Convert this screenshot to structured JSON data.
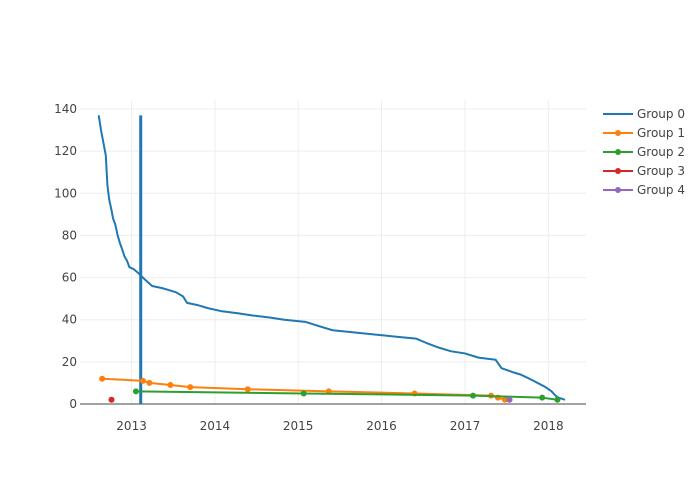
{
  "chart_data": {
    "type": "line",
    "title": "",
    "xlabel": "",
    "ylabel": "",
    "x_ticks": [
      "2013",
      "2014",
      "2015",
      "2016",
      "2017",
      "2018"
    ],
    "y_ticks": [
      "0",
      "20",
      "40",
      "60",
      "80",
      "100",
      "120",
      "140"
    ],
    "xlim": [
      "2012-05-20",
      "2018-06-15"
    ],
    "ylim": [
      0,
      140
    ],
    "grid": true,
    "legend_position": "top-right",
    "series": [
      {
        "name": "Group 0",
        "color": "#1f77b4",
        "mode": "lines",
        "points": [
          [
            "2012-08-10",
            137
          ],
          [
            "2012-08-20",
            130
          ],
          [
            "2012-08-27",
            126
          ],
          [
            "2012-09-03",
            122
          ],
          [
            "2012-09-10",
            118
          ],
          [
            "2012-09-17",
            104
          ],
          [
            "2012-09-25",
            97
          ],
          [
            "2012-10-05",
            92
          ],
          [
            "2012-10-12",
            88
          ],
          [
            "2012-10-22",
            85
          ],
          [
            "2012-11-01",
            80
          ],
          [
            "2012-11-12",
            76
          ],
          [
            "2012-11-22",
            73
          ],
          [
            "2012-12-01",
            70
          ],
          [
            "2012-12-12",
            68
          ],
          [
            "2012-12-22",
            65
          ],
          [
            "2013-01-10",
            64
          ],
          [
            "2013-02-01",
            62
          ],
          [
            "2013-03-01",
            59
          ],
          [
            "2013-04-01",
            56
          ],
          [
            "2013-05-15",
            55
          ],
          [
            "2013-06-15",
            54
          ],
          [
            "2013-07-15",
            53
          ],
          [
            "2013-08-15",
            51
          ],
          [
            "2013-09-01",
            48
          ],
          [
            "2013-10-15",
            47
          ],
          [
            "2013-12-01",
            45.5
          ],
          [
            "2014-02-01",
            44
          ],
          [
            "2014-04-15",
            43
          ],
          [
            "2014-06-15",
            42
          ],
          [
            "2014-09-01",
            41
          ],
          [
            "2014-11-01",
            40
          ],
          [
            "2015-02-01",
            39
          ],
          [
            "2015-04-01",
            37
          ],
          [
            "2015-06-01",
            35
          ],
          [
            "2015-09-01",
            34
          ],
          [
            "2015-12-01",
            33
          ],
          [
            "2016-03-01",
            32
          ],
          [
            "2016-06-01",
            31
          ],
          [
            "2016-07-15",
            29
          ],
          [
            "2016-09-01",
            27
          ],
          [
            "2016-11-01",
            25
          ],
          [
            "2017-01-01",
            24
          ],
          [
            "2017-03-01",
            22
          ],
          [
            "2017-05-15",
            21
          ],
          [
            "2017-06-10",
            17
          ],
          [
            "2017-08-01",
            15
          ],
          [
            "2017-09-01",
            14
          ],
          [
            "2017-10-10",
            12
          ],
          [
            "2017-11-15",
            10
          ],
          [
            "2017-12-20",
            8
          ],
          [
            "2018-01-15",
            6
          ],
          [
            "2018-02-01",
            4
          ],
          [
            "2018-02-15",
            3
          ],
          [
            "2018-03-01",
            2.5
          ],
          [
            "2018-03-15",
            2
          ]
        ]
      },
      {
        "name": "Group 1",
        "color": "#ff7f0e",
        "mode": "lines+markers",
        "points": [
          [
            "2012-08-25",
            12
          ],
          [
            "2013-02-20",
            11
          ],
          [
            "2013-03-20",
            10
          ],
          [
            "2013-06-20",
            9
          ],
          [
            "2013-09-15",
            8
          ],
          [
            "2014-05-25",
            7
          ],
          [
            "2015-05-15",
            6
          ],
          [
            "2016-05-25",
            5
          ],
          [
            "2017-04-25",
            4
          ],
          [
            "2017-05-25",
            3
          ],
          [
            "2017-06-25",
            2
          ]
        ]
      },
      {
        "name": "Group 2",
        "color": "#2ca02c",
        "mode": "lines+markers",
        "points": [
          [
            "2013-01-20",
            6
          ],
          [
            "2015-01-25",
            5
          ],
          [
            "2017-02-05",
            4
          ],
          [
            "2017-12-05",
            3
          ],
          [
            "2018-02-10",
            2
          ]
        ]
      },
      {
        "name": "Group 3",
        "color": "#d62728",
        "mode": "lines+markers",
        "points": [
          [
            "2012-10-05",
            2
          ]
        ]
      },
      {
        "name": "Group 4",
        "color": "#9467bd",
        "mode": "lines+markers",
        "points": [
          [
            "2017-07-15",
            2
          ]
        ]
      }
    ],
    "vertical_bar": {
      "color": "#1f77b4",
      "x": "2013-02-10",
      "y_from": 0,
      "y_to": 137
    }
  }
}
